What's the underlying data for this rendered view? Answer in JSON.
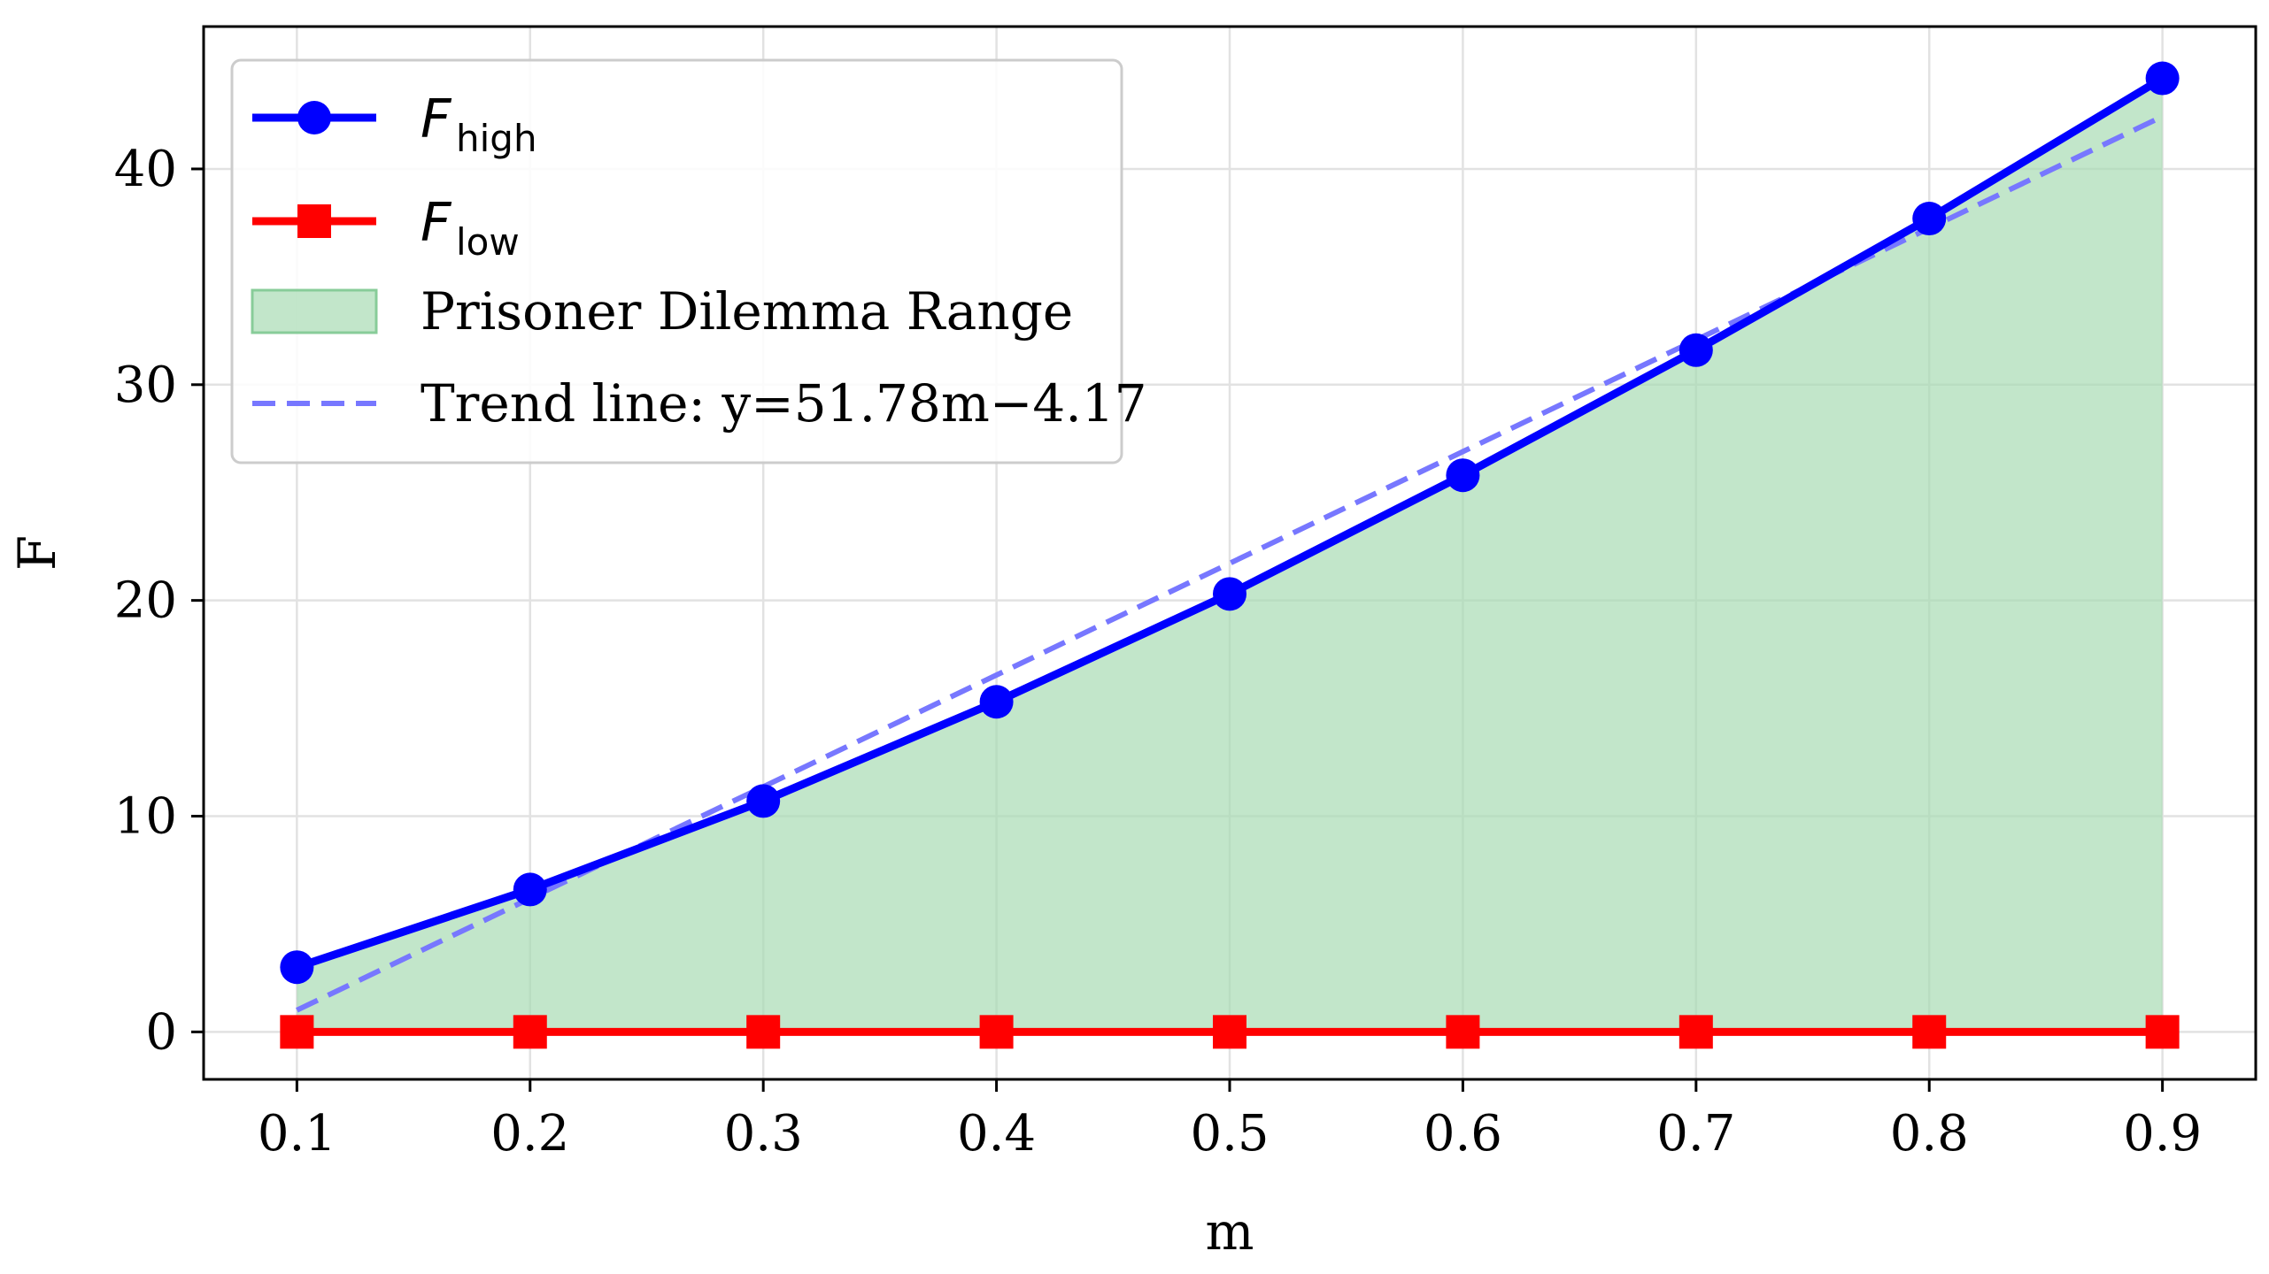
{
  "chart_data": {
    "type": "line",
    "x": [
      0.1,
      0.2,
      0.3,
      0.4,
      0.5,
      0.6,
      0.7,
      0.8,
      0.9
    ],
    "series": [
      {
        "name": "F_high",
        "label_main": "F",
        "label_sub": "high",
        "values": [
          3.0,
          6.6,
          10.7,
          15.3,
          20.3,
          25.8,
          31.6,
          37.7,
          44.2
        ],
        "color": "#0000ff",
        "marker": "circle"
      },
      {
        "name": "F_low",
        "label_main": "F",
        "label_sub": "low",
        "values": [
          0,
          0,
          0,
          0,
          0,
          0,
          0,
          0,
          0
        ],
        "color": "#ff0000",
        "marker": "square"
      }
    ],
    "fill": {
      "name": "Prisoner Dilemma Range",
      "between": [
        "F_low",
        "F_high"
      ],
      "color": "#a8dbb4"
    },
    "trend": {
      "name": "Trend line: y=51.78m−4.17",
      "slope": 51.78,
      "intercept": -4.17,
      "color": "#7777ff",
      "style": "dashed"
    },
    "xlabel": "m",
    "ylabel": "F",
    "xlim": [
      0.06,
      0.94
    ],
    "ylim": [
      -2.2,
      46.6
    ],
    "xticks": [
      "0.1",
      "0.2",
      "0.3",
      "0.4",
      "0.5",
      "0.6",
      "0.7",
      "0.8",
      "0.9"
    ],
    "yticks": [
      "0",
      "10",
      "20",
      "30",
      "40"
    ],
    "grid": true,
    "legend_position": "top-left"
  }
}
